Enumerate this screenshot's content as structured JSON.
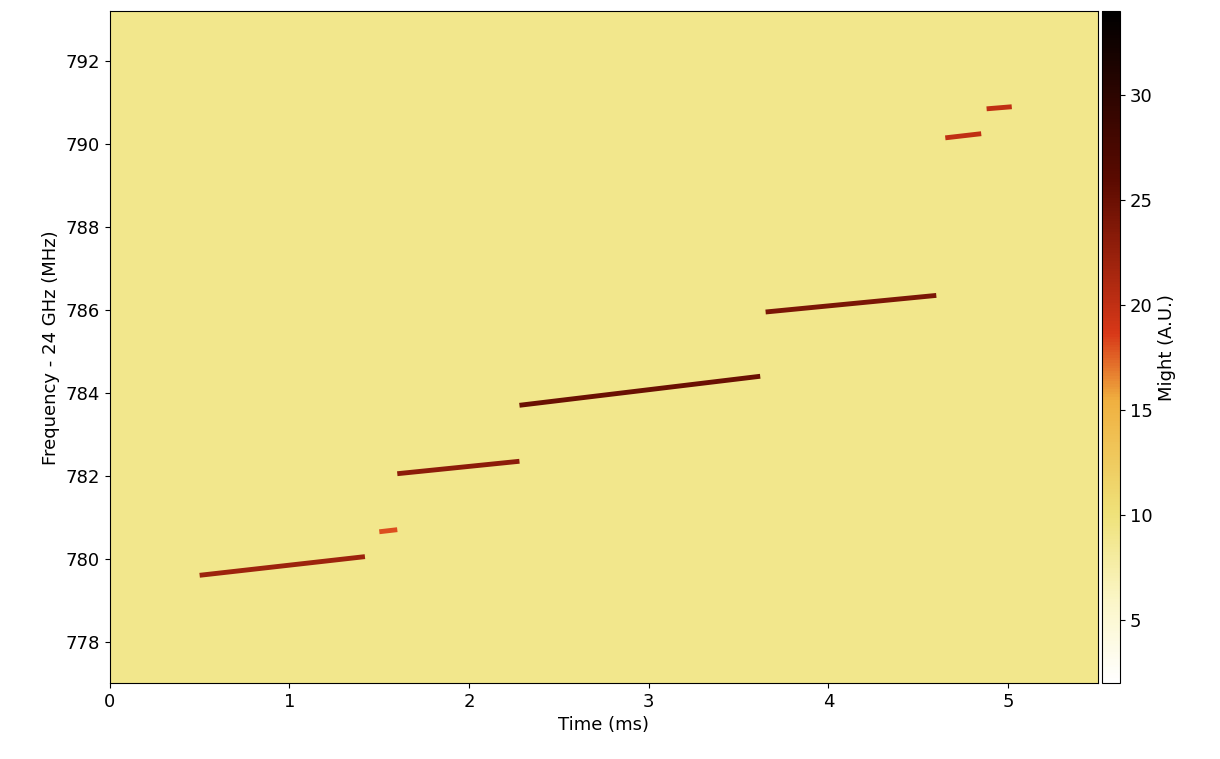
{
  "chart_data": {
    "type": "spectrogram",
    "x_label": "Time (ms)",
    "y_label": "Frequency - 24 GHz (MHz)",
    "colorbar_label": "Might (A.U.)",
    "xlim": [
      0,
      5.5
    ],
    "xticks": [
      0,
      1,
      2,
      3,
      4,
      5
    ],
    "ylim": [
      777,
      793.2
    ],
    "yticks": [
      778,
      780,
      782,
      784,
      786,
      788,
      790,
      792
    ],
    "colorbar_range": [
      2,
      34
    ],
    "colorbar_ticks": [
      5,
      10,
      15,
      20,
      25,
      30
    ],
    "background": 9,
    "segments": [
      {
        "time": [
          0.5,
          1.42
        ],
        "frequency": [
          779.6,
          780.05
        ],
        "value": 22
      },
      {
        "time": [
          1.5,
          1.6
        ],
        "frequency": [
          780.65,
          780.7
        ],
        "value": 18
      },
      {
        "time": [
          1.6,
          2.28
        ],
        "frequency": [
          782.05,
          782.35
        ],
        "value": 23
      },
      {
        "time": [
          2.28,
          3.62
        ],
        "frequency": [
          783.7,
          784.4
        ],
        "value": 25
      },
      {
        "time": [
          3.65,
          4.6
        ],
        "frequency": [
          785.95,
          786.35
        ],
        "value": 24
      },
      {
        "time": [
          4.65,
          4.85
        ],
        "frequency": [
          790.15,
          790.25
        ],
        "value": 20
      },
      {
        "time": [
          4.88,
          5.02
        ],
        "frequency": [
          790.85,
          790.9
        ],
        "value": 20
      }
    ]
  }
}
